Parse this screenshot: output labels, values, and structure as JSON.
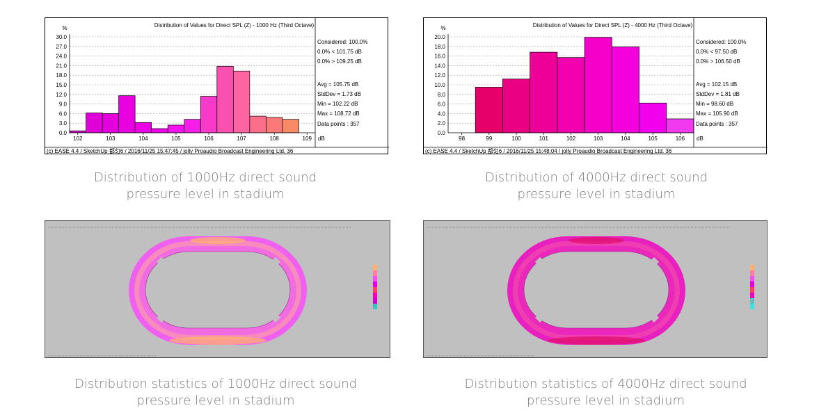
{
  "chart_data": [
    {
      "type": "bar",
      "title": "Distribution of Values for Direct SPL (Z) - 1000 Hz (Third Octave)",
      "ylabel": "%",
      "xlabel": "dB",
      "ylim": [
        0,
        30
      ],
      "yticks": [
        "30.0",
        "27.0",
        "24.0",
        "21.0",
        "18.0",
        "15.0",
        "12.0",
        "9.0",
        "6.0",
        "3.0",
        "0.0"
      ],
      "xticks": [
        "102",
        "103",
        "104",
        "105",
        "106",
        "107",
        "108",
        "109"
      ],
      "xlim": [
        101.75,
        109.25
      ],
      "bin_width": 0.5,
      "bins": [
        {
          "x": 101.75,
          "value": 0.6,
          "color": "#d400cf"
        },
        {
          "x": 102.25,
          "value": 6.2,
          "color": "#e000d8"
        },
        {
          "x": 102.75,
          "value": 6.0,
          "color": "#e400dc"
        },
        {
          "x": 103.25,
          "value": 11.6,
          "color": "#e800e0"
        },
        {
          "x": 103.75,
          "value": 3.2,
          "color": "#ec00e6"
        },
        {
          "x": 104.25,
          "value": 1.3,
          "color": "#f000ea"
        },
        {
          "x": 104.75,
          "value": 2.4,
          "color": "#f412ee"
        },
        {
          "x": 105.25,
          "value": 4.2,
          "color": "#f51ee9"
        },
        {
          "x": 105.75,
          "value": 11.4,
          "color": "#f83acb"
        },
        {
          "x": 106.25,
          "value": 20.8,
          "color": "#fa50b0"
        },
        {
          "x": 106.75,
          "value": 19.3,
          "color": "#fc64a2"
        },
        {
          "x": 107.25,
          "value": 5.2,
          "color": "#fb6f8a"
        },
        {
          "x": 107.75,
          "value": 4.8,
          "color": "#fb7878"
        },
        {
          "x": 108.25,
          "value": 4.2,
          "color": "#f88a65"
        }
      ],
      "stats": [
        "Considered: 100.0%",
        "0.0%  < 101.75 dB",
        "0.0%  > 109.25 dB",
        "Avg = 105.75 dB",
        "StdDev = 1.73 dB",
        "Min = 102.22 dB",
        "Max = 108.72 dB",
        "Data points : 357"
      ],
      "footer": "(c) EASE 4.4  / SketchUp 都匀6  / 2016/11/25 15:47:45 / jolly Proaudio Broadcast Engineering Ltd. 36"
    },
    {
      "type": "bar",
      "title": "Distribution of Values for Direct SPL (Z) - 4000 Hz (Third Octave)",
      "ylabel": "%",
      "xlabel": "dB",
      "ylim": [
        0,
        20
      ],
      "yticks": [
        "20.0",
        "18.0",
        "16.0",
        "14.0",
        "12.0",
        "10.0",
        "8.0",
        "6.0",
        "4.0",
        "2.0",
        "0.0"
      ],
      "xticks": [
        "98",
        "99",
        "100",
        "101",
        "102",
        "103",
        "104",
        "105",
        "106"
      ],
      "xlim": [
        97.5,
        106.5
      ],
      "bin_width": 1,
      "bins": [
        {
          "x": 98.5,
          "value": 9.5,
          "color": "#e5006a"
        },
        {
          "x": 99.5,
          "value": 11.2,
          "color": "#ea0082"
        },
        {
          "x": 100.5,
          "value": 16.8,
          "color": "#ee0098"
        },
        {
          "x": 101.5,
          "value": 15.7,
          "color": "#f200b0"
        },
        {
          "x": 102.5,
          "value": 19.9,
          "color": "#f500c8"
        },
        {
          "x": 103.5,
          "value": 17.9,
          "color": "#f400dc"
        },
        {
          "x": 104.5,
          "value": 6.2,
          "color": "#f200ee"
        },
        {
          "x": 105.5,
          "value": 2.9,
          "color": "#f13af0"
        }
      ],
      "stats": [
        "Considered: 100.0%",
        "0.0%  < 97.50 dB",
        "0.0%  > 106.50 dB",
        "Avg = 102.15 dB",
        "StdDev = 1.81 dB",
        "Min = 98.60 dB",
        "Max = 105.90 dB",
        "Data points : 357"
      ],
      "footer": "(c) EASE 4.4  / SketchUp 都匀6  / 2016/11/25 15:48:04 / jolly Proaudio Broadcast Engineering Ltd. 36"
    }
  ],
  "captions": {
    "hist1": [
      "Distribution of 1000Hz direct sound",
      "pressure level in stadium"
    ],
    "hist2": [
      "Distribution of 4000Hz direct sound",
      "pressure level in stadium"
    ],
    "map1": [
      "Distribution statistics of 1000Hz direct sound",
      "pressure level in stadium"
    ],
    "map2": [
      "Distribution statistics of 4000Hz direct sound",
      "pressure level in stadium"
    ]
  },
  "maps": [
    {
      "ring_outer": "#f060f0",
      "ring_inner": "#f890b8",
      "accent": "#ffb070",
      "field": "#c0c0c0"
    },
    {
      "ring_outer": "#e820c0",
      "ring_inner": "#f040b0",
      "accent": "#e0106a",
      "field": "#c0c0c0"
    }
  ]
}
